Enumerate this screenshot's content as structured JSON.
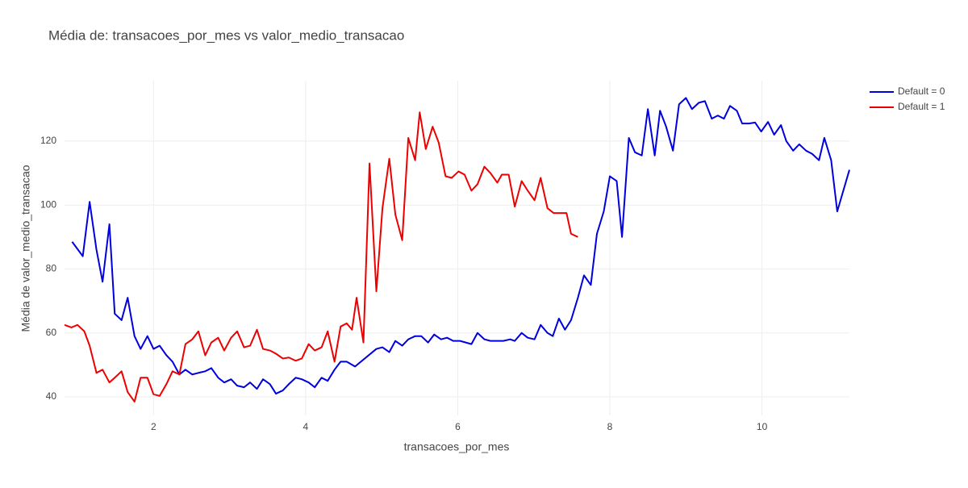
{
  "chart_data": {
    "type": "line",
    "title": "Média de: transacoes_por_mes vs valor_medio_transacao",
    "xlabel": "transacoes_por_mes",
    "ylabel": "Média de valor_medio_transacao",
    "xlim": [
      0.83,
      11.15
    ],
    "ylim": [
      34.2,
      138.9
    ],
    "xticks": [
      2,
      4,
      6,
      8,
      10
    ],
    "yticks": [
      40,
      60,
      80,
      100,
      120
    ],
    "grid": true,
    "legend": "top-right",
    "series": [
      {
        "name": "Default = 0",
        "color": "#0000dd",
        "x": [
          0.93,
          1.07,
          1.16,
          1.25,
          1.33,
          1.42,
          1.49,
          1.58,
          1.66,
          1.75,
          1.83,
          1.92,
          2.0,
          2.08,
          2.17,
          2.25,
          2.34,
          2.42,
          2.51,
          2.59,
          2.68,
          2.76,
          2.85,
          2.93,
          3.02,
          3.1,
          3.19,
          3.27,
          3.36,
          3.44,
          3.53,
          3.61,
          3.7,
          3.78,
          3.87,
          3.95,
          4.04,
          4.12,
          4.21,
          4.29,
          4.38,
          4.46,
          4.54,
          4.65,
          4.93,
          5.01,
          5.1,
          5.18,
          5.27,
          5.35,
          5.44,
          5.52,
          5.61,
          5.69,
          5.78,
          5.86,
          5.94,
          6.03,
          6.18,
          6.26,
          6.35,
          6.43,
          6.52,
          6.6,
          6.69,
          6.75,
          6.84,
          6.92,
          7.01,
          7.09,
          7.18,
          7.25,
          7.33,
          7.41,
          7.49,
          7.58,
          7.66,
          7.75,
          7.83,
          7.92,
          8.0,
          8.09,
          8.16,
          8.25,
          8.33,
          8.42,
          8.5,
          8.59,
          8.66,
          8.74,
          8.83,
          8.91,
          9.0,
          9.08,
          9.17,
          9.25,
          9.34,
          9.42,
          9.5,
          9.58,
          9.67,
          9.74,
          9.83,
          9.91,
          9.99,
          10.08,
          10.16,
          10.25,
          10.32,
          10.41,
          10.49,
          10.58,
          10.66,
          10.75,
          10.82,
          10.91,
          10.99,
          11.15
        ],
        "values": [
          88.5,
          84,
          101,
          86,
          76,
          94,
          66,
          64,
          71,
          59,
          55,
          59,
          55,
          56,
          53,
          51,
          47,
          48.5,
          47,
          47.5,
          48,
          49,
          46,
          44.5,
          45.5,
          43.5,
          43,
          44.5,
          42.5,
          45.5,
          44,
          41,
          42,
          44,
          46,
          45.5,
          44.5,
          43,
          46,
          45,
          48.5,
          51,
          51,
          49.5,
          55,
          55.5,
          54,
          57.5,
          56,
          58,
          59,
          59,
          57,
          59.5,
          58,
          58.5,
          57.5,
          57.5,
          56.5,
          60,
          58,
          57.5,
          57.5,
          57.5,
          58,
          57.5,
          60,
          58.5,
          58,
          62.5,
          60,
          59,
          64.5,
          61,
          64,
          71,
          78,
          75,
          91,
          98,
          109,
          107.5,
          90,
          121,
          116.5,
          115.5,
          130,
          115.5,
          129.5,
          124.5,
          117,
          131.5,
          133.5,
          130,
          132,
          132.5,
          127,
          128,
          127,
          131,
          129.5,
          125.5,
          125.5,
          125.8,
          123,
          126,
          122,
          125,
          120,
          117,
          119,
          117,
          116,
          114,
          121,
          114,
          98,
          111
        ]
      },
      {
        "name": "Default = 1",
        "color": "#ee0000",
        "x": [
          0.83,
          0.92,
          1.0,
          1.09,
          1.16,
          1.25,
          1.33,
          1.42,
          1.49,
          1.58,
          1.66,
          1.75,
          1.83,
          1.92,
          2.0,
          2.08,
          2.17,
          2.25,
          2.34,
          2.42,
          2.51,
          2.59,
          2.68,
          2.76,
          2.85,
          2.93,
          3.02,
          3.1,
          3.19,
          3.27,
          3.36,
          3.44,
          3.53,
          3.61,
          3.7,
          3.78,
          3.87,
          3.95,
          4.04,
          4.12,
          4.21,
          4.29,
          4.38,
          4.46,
          4.54,
          4.61,
          4.67,
          4.76,
          4.84,
          4.93,
          5.01,
          5.1,
          5.18,
          5.27,
          5.35,
          5.44,
          5.5,
          5.58,
          5.67,
          5.75,
          5.84,
          5.92,
          6.01,
          6.09,
          6.18,
          6.26,
          6.35,
          6.43,
          6.52,
          6.58,
          6.67,
          6.75,
          6.84,
          6.92,
          7.01,
          7.09,
          7.18,
          7.26,
          7.34,
          7.43,
          7.49,
          7.58
        ],
        "values": [
          62.5,
          61.7,
          62.5,
          60.5,
          56,
          47.5,
          48.5,
          44.5,
          46,
          48,
          41.5,
          38.5,
          46,
          46,
          40.8,
          40.3,
          44,
          48,
          47,
          56.5,
          58,
          60.5,
          53,
          57,
          58.5,
          54.5,
          58.5,
          60.5,
          55.5,
          56,
          61,
          55,
          54.5,
          53.5,
          52,
          52.3,
          51.3,
          52,
          56.5,
          54.5,
          55.5,
          60.5,
          51,
          62,
          63,
          61,
          71,
          57,
          113,
          73,
          99,
          114.5,
          97,
          89,
          121,
          114,
          129,
          117.5,
          124.5,
          119.5,
          109,
          108.5,
          110.5,
          109.5,
          104.5,
          106.5,
          112,
          110,
          107,
          109.5,
          109.5,
          99.5,
          107.5,
          104.5,
          101.5,
          108.5,
          99,
          97.5,
          97.5,
          97.5,
          91,
          90
        ]
      }
    ]
  }
}
